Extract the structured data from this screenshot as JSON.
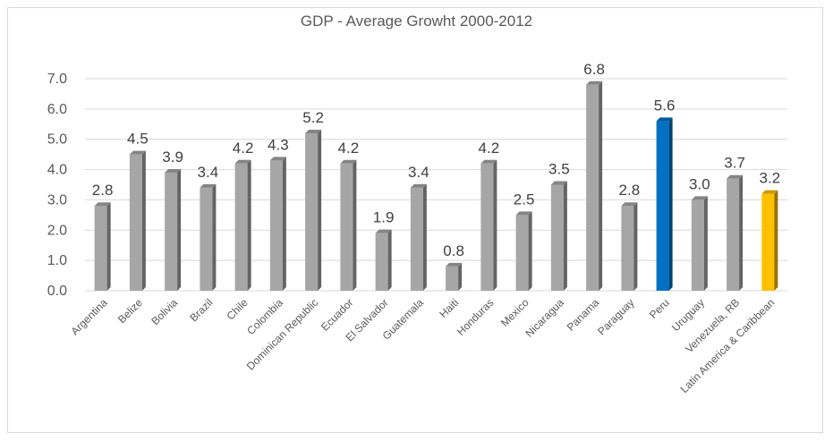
{
  "chart_data": {
    "type": "bar",
    "title": "GDP - Average Growht  2000-2012",
    "xlabel": "",
    "ylabel": "",
    "ylim": [
      0,
      7
    ],
    "yticks": [
      "0.0",
      "1.0",
      "2.0",
      "3.0",
      "4.0",
      "5.0",
      "6.0",
      "7.0"
    ],
    "grid": true,
    "categories": [
      "Argentina",
      "Belize",
      "Bolivia",
      "Brazil",
      "Chile",
      "Colombia",
      "Dominican Republic",
      "Ecuador",
      "El Salvador",
      "Guatemala",
      "Haiti",
      "Honduras",
      "Mexico",
      "Nicaragua",
      "Panama",
      "Paraguay",
      "Peru",
      "Uruguay",
      "Venezuela, RB",
      "Latin America & Caribbean"
    ],
    "values": [
      2.8,
      4.5,
      3.9,
      3.4,
      4.2,
      4.3,
      5.2,
      4.2,
      1.9,
      3.4,
      0.8,
      4.2,
      2.5,
      3.5,
      6.8,
      2.8,
      5.6,
      3.0,
      3.7,
      3.2
    ],
    "data_labels": [
      "2.8",
      "4.5",
      "3.9",
      "3.4",
      "4.2",
      "4.3",
      "5.2",
      "4.2",
      "1.9",
      "3.4",
      "0.8",
      "4.2",
      "2.5",
      "3.5",
      "6.8",
      "2.8",
      "5.6",
      "3.0",
      "3.7",
      "3.2"
    ],
    "colors": {
      "default": "#a6a6a6",
      "highlight": {
        "Peru": "#0070c0",
        "Latin America & Caribbean": "#ffc000"
      },
      "grid": "#d9d9d9",
      "axis_text": "#595959"
    }
  }
}
